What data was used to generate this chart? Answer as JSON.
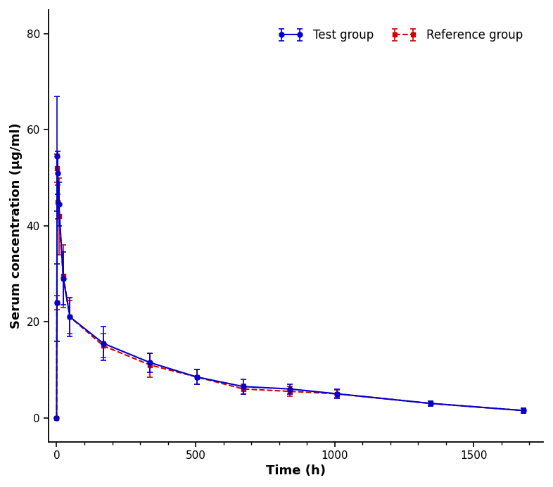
{
  "test_x": [
    0,
    1,
    2,
    4,
    8,
    24,
    48,
    168,
    336,
    504,
    672,
    840,
    1008,
    1344,
    1680
  ],
  "test_y": [
    0.0,
    24.0,
    54.5,
    51.0,
    44.5,
    29.0,
    21.0,
    15.5,
    11.5,
    8.5,
    6.5,
    6.0,
    5.0,
    3.0,
    1.5
  ],
  "test_yerr_low": [
    0.0,
    8.0,
    11.5,
    4.5,
    4.5,
    5.5,
    4.0,
    3.5,
    2.0,
    1.5,
    1.5,
    1.0,
    1.0,
    0.5,
    0.5
  ],
  "test_yerr_high": [
    0.0,
    8.0,
    12.5,
    4.5,
    4.5,
    5.5,
    4.0,
    3.5,
    2.0,
    1.5,
    1.5,
    1.0,
    1.0,
    0.5,
    0.5
  ],
  "ref_x": [
    0,
    1,
    2,
    4,
    8,
    24,
    48,
    168,
    336,
    504,
    672,
    840,
    1008,
    1344,
    1680
  ],
  "ref_y": [
    0.0,
    24.0,
    52.0,
    45.0,
    42.0,
    29.5,
    21.0,
    15.0,
    11.0,
    8.5,
    6.0,
    5.5,
    5.0,
    3.0,
    1.5
  ],
  "ref_yerr_low": [
    0.0,
    1.5,
    3.0,
    3.5,
    8.0,
    6.5,
    3.5,
    2.5,
    2.5,
    1.5,
    1.0,
    1.0,
    0.8,
    0.5,
    0.5
  ],
  "ref_yerr_high": [
    0.0,
    1.5,
    3.0,
    3.5,
    8.0,
    6.5,
    3.5,
    2.5,
    2.5,
    1.5,
    1.0,
    1.0,
    0.8,
    0.5,
    0.5
  ],
  "test_color": "#0000CC",
  "ref_color": "#CC0000",
  "xlabel": "Time (h)",
  "ylabel": "Serum concentration (μg/ml)",
  "xlim": [
    -30,
    1750
  ],
  "ylim": [
    -5,
    85
  ],
  "yticks": [
    0,
    20,
    40,
    60,
    80
  ],
  "xticks": [
    0,
    500,
    1000,
    1500
  ],
  "legend_test": "Test group",
  "legend_ref": "Reference group",
  "figsize": [
    7.86,
    6.92
  ],
  "dpi": 100
}
